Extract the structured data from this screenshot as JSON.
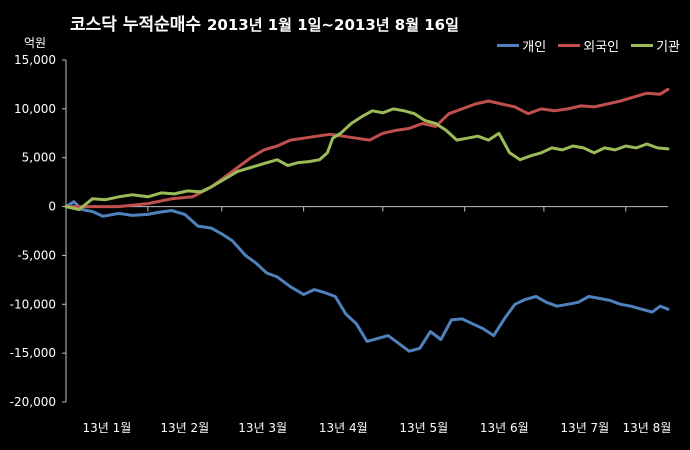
{
  "chart_data": {
    "type": "line",
    "title": "코스닥  누적순매수",
    "subtitle": "2013년 1월 1일~2013년 8월 16일",
    "unit_label": "억원",
    "xlabel": "",
    "ylabel": "",
    "ylim": [
      -20000,
      15000
    ],
    "y_ticks": [
      15000,
      10000,
      5000,
      0,
      -5000,
      -10000,
      -15000,
      -20000
    ],
    "y_tick_labels": [
      "15,000",
      "10,000",
      "5,000",
      "0",
      "-5,000",
      "-10,000",
      "-15,000",
      "-20,000"
    ],
    "x_tick_labels": [
      "13년 1월",
      "13년 2월",
      "13년 3월",
      "13년 4월",
      "13년 5월",
      "13년 6월",
      "13년 7월",
      "13년 8월"
    ],
    "x_index_range": [
      0,
      228
    ],
    "x_tick_index": [
      0,
      31,
      59,
      90,
      120,
      151,
      181,
      212
    ],
    "legend_position": "top-right",
    "grid": false,
    "series": [
      {
        "name": "개인",
        "color": "#4f81bd",
        "points": [
          [
            0,
            0
          ],
          [
            3,
            500
          ],
          [
            6,
            -300
          ],
          [
            10,
            -500
          ],
          [
            14,
            -1000
          ],
          [
            20,
            -700
          ],
          [
            25,
            -900
          ],
          [
            31,
            -800
          ],
          [
            35,
            -600
          ],
          [
            40,
            -400
          ],
          [
            45,
            -800
          ],
          [
            50,
            -2000
          ],
          [
            55,
            -2200
          ],
          [
            59,
            -2800
          ],
          [
            63,
            -3500
          ],
          [
            68,
            -5000
          ],
          [
            72,
            -5800
          ],
          [
            76,
            -6800
          ],
          [
            80,
            -7200
          ],
          [
            85,
            -8200
          ],
          [
            90,
            -9000
          ],
          [
            94,
            -8500
          ],
          [
            98,
            -8800
          ],
          [
            102,
            -9200
          ],
          [
            106,
            -11000
          ],
          [
            110,
            -12000
          ],
          [
            114,
            -13800
          ],
          [
            118,
            -13500
          ],
          [
            122,
            -13200
          ],
          [
            126,
            -14000
          ],
          [
            130,
            -14800
          ],
          [
            134,
            -14500
          ],
          [
            138,
            -12800
          ],
          [
            142,
            -13600
          ],
          [
            146,
            -11600
          ],
          [
            150,
            -11500
          ],
          [
            154,
            -12000
          ],
          [
            158,
            -12500
          ],
          [
            162,
            -13200
          ],
          [
            166,
            -11500
          ],
          [
            170,
            -10000
          ],
          [
            174,
            -9500
          ],
          [
            178,
            -9200
          ],
          [
            182,
            -9800
          ],
          [
            186,
            -10200
          ],
          [
            190,
            -10000
          ],
          [
            194,
            -9800
          ],
          [
            198,
            -9200
          ],
          [
            202,
            -9400
          ],
          [
            206,
            -9600
          ],
          [
            210,
            -10000
          ],
          [
            214,
            -10200
          ],
          [
            218,
            -10500
          ],
          [
            222,
            -10800
          ],
          [
            225,
            -10200
          ],
          [
            228,
            -10500
          ]
        ]
      },
      {
        "name": "외국인",
        "color": "#c0504d",
        "points": [
          [
            0,
            0
          ],
          [
            10,
            0
          ],
          [
            20,
            0
          ],
          [
            31,
            300
          ],
          [
            40,
            800
          ],
          [
            48,
            1000
          ],
          [
            55,
            2000
          ],
          [
            60,
            3000
          ],
          [
            65,
            4000
          ],
          [
            70,
            5000
          ],
          [
            75,
            5800
          ],
          [
            80,
            6200
          ],
          [
            85,
            6800
          ],
          [
            90,
            7000
          ],
          [
            95,
            7200
          ],
          [
            100,
            7400
          ],
          [
            105,
            7200
          ],
          [
            110,
            7000
          ],
          [
            115,
            6800
          ],
          [
            120,
            7500
          ],
          [
            125,
            7800
          ],
          [
            130,
            8000
          ],
          [
            135,
            8500
          ],
          [
            140,
            8200
          ],
          [
            145,
            9500
          ],
          [
            150,
            10000
          ],
          [
            155,
            10500
          ],
          [
            160,
            10800
          ],
          [
            165,
            10500
          ],
          [
            170,
            10200
          ],
          [
            175,
            9500
          ],
          [
            180,
            10000
          ],
          [
            185,
            9800
          ],
          [
            190,
            10000
          ],
          [
            195,
            10300
          ],
          [
            200,
            10200
          ],
          [
            205,
            10500
          ],
          [
            210,
            10800
          ],
          [
            215,
            11200
          ],
          [
            220,
            11600
          ],
          [
            225,
            11500
          ],
          [
            228,
            12000
          ]
        ]
      },
      {
        "name": "기관",
        "color": "#9bbb59",
        "points": [
          [
            0,
            0
          ],
          [
            5,
            -300
          ],
          [
            10,
            800
          ],
          [
            15,
            700
          ],
          [
            20,
            1000
          ],
          [
            25,
            1200
          ],
          [
            31,
            1000
          ],
          [
            36,
            1400
          ],
          [
            41,
            1300
          ],
          [
            46,
            1600
          ],
          [
            51,
            1500
          ],
          [
            55,
            2000
          ],
          [
            60,
            2800
          ],
          [
            65,
            3600
          ],
          [
            70,
            4000
          ],
          [
            75,
            4400
          ],
          [
            80,
            4800
          ],
          [
            84,
            4200
          ],
          [
            88,
            4500
          ],
          [
            92,
            4600
          ],
          [
            96,
            4800
          ],
          [
            99,
            5500
          ],
          [
            101,
            7000
          ],
          [
            104,
            7500
          ],
          [
            108,
            8500
          ],
          [
            112,
            9200
          ],
          [
            116,
            9800
          ],
          [
            120,
            9600
          ],
          [
            124,
            10000
          ],
          [
            128,
            9800
          ],
          [
            132,
            9500
          ],
          [
            136,
            8800
          ],
          [
            140,
            8500
          ],
          [
            144,
            7800
          ],
          [
            148,
            6800
          ],
          [
            152,
            7000
          ],
          [
            156,
            7200
          ],
          [
            160,
            6800
          ],
          [
            164,
            7500
          ],
          [
            168,
            5500
          ],
          [
            172,
            4800
          ],
          [
            176,
            5200
          ],
          [
            180,
            5500
          ],
          [
            184,
            6000
          ],
          [
            188,
            5800
          ],
          [
            192,
            6200
          ],
          [
            196,
            6000
          ],
          [
            200,
            5500
          ],
          [
            204,
            6000
          ],
          [
            208,
            5800
          ],
          [
            212,
            6200
          ],
          [
            216,
            6000
          ],
          [
            220,
            6400
          ],
          [
            224,
            6000
          ],
          [
            228,
            5900
          ]
        ]
      }
    ]
  }
}
